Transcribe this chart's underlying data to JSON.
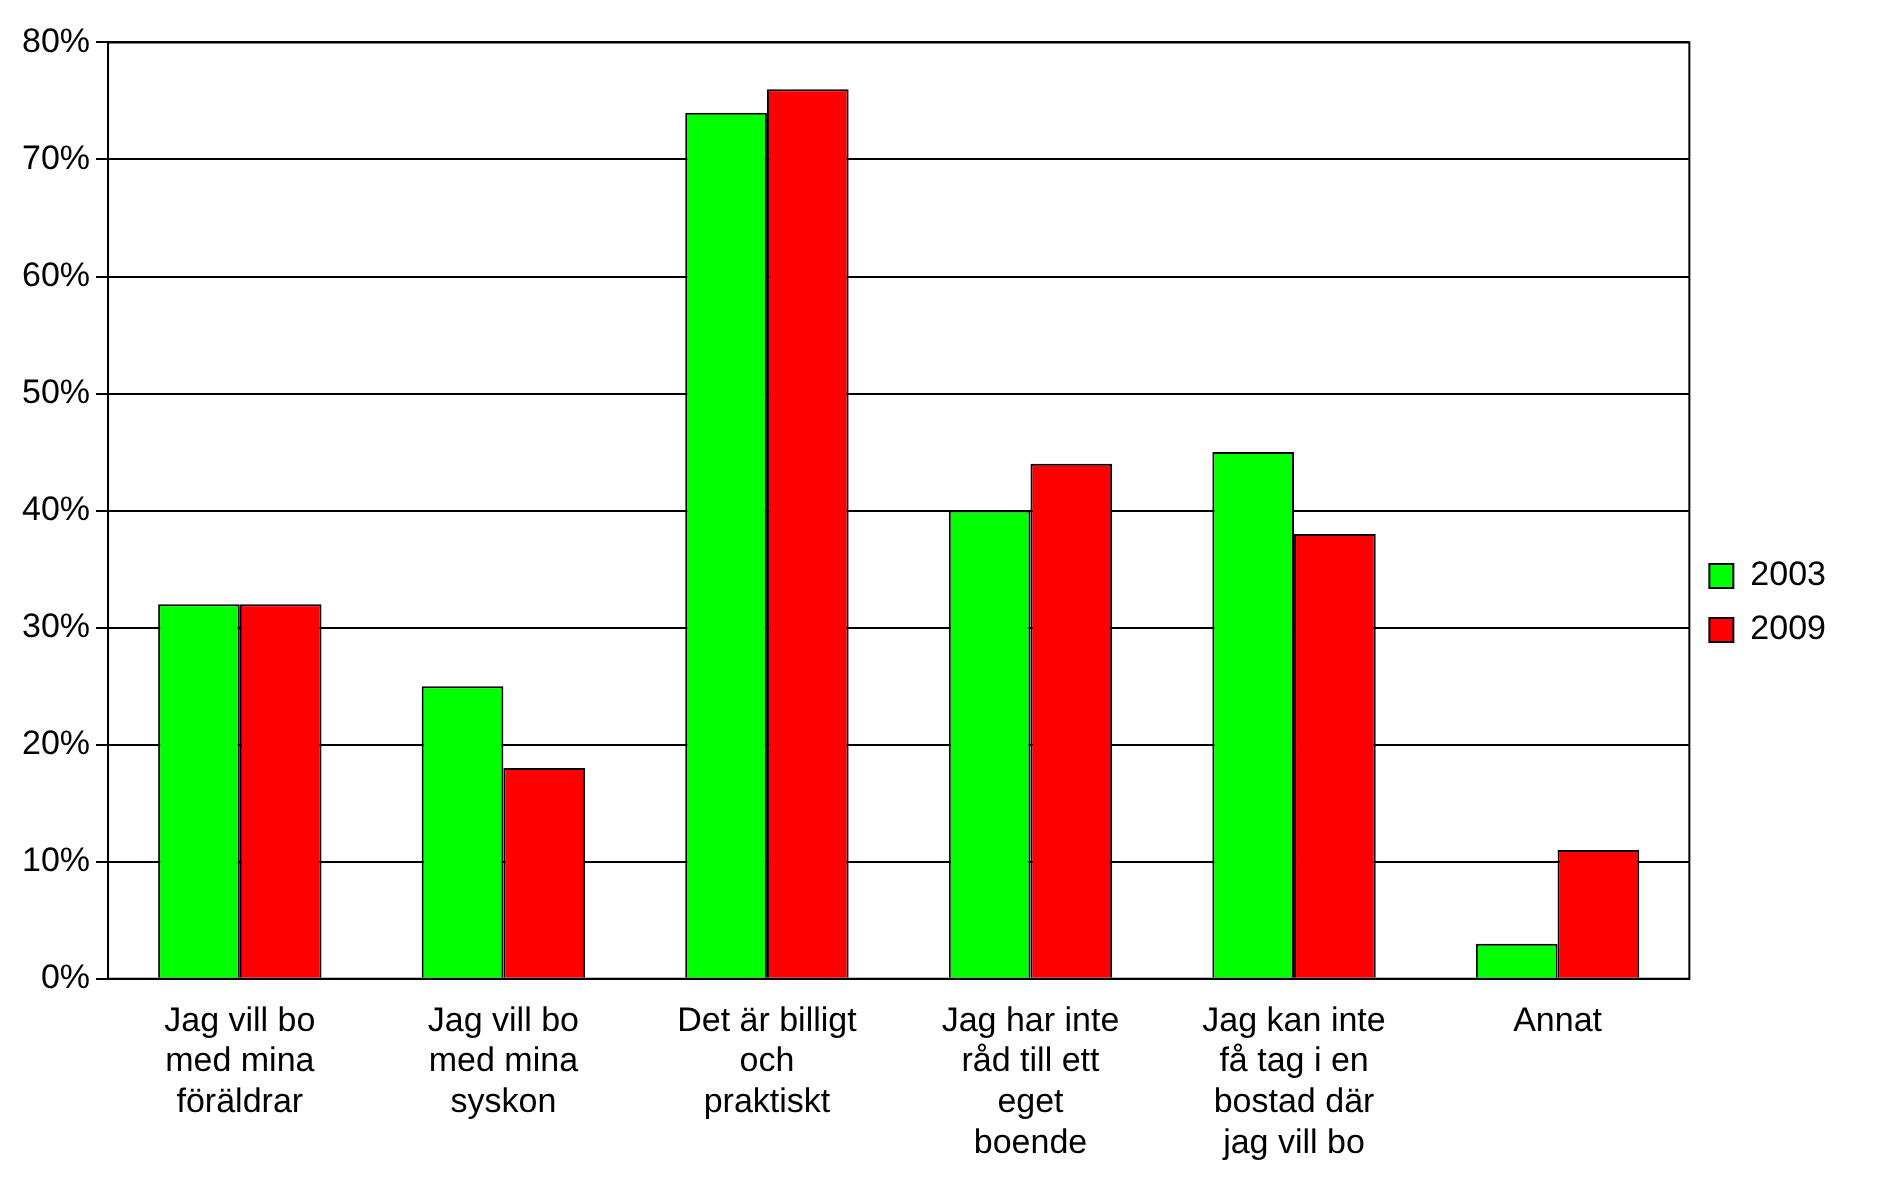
{
  "chart_data": {
    "type": "bar",
    "categories": [
      "Jag vill bo med mina föräldrar",
      "Jag vill bo med mina syskon",
      "Det är billigt och praktiskt",
      "Jag har inte råd till ett eget boende",
      "Jag kan inte få tag i en bostad där jag vill bo",
      "Annat"
    ],
    "series": [
      {
        "name": "2003",
        "color": "#00ff00",
        "values": [
          32,
          25,
          74,
          40,
          45,
          3
        ]
      },
      {
        "name": "2009",
        "color": "#ff0000",
        "values": [
          32,
          18,
          76,
          44,
          38,
          11
        ]
      }
    ],
    "ylim": [
      0,
      80
    ],
    "yticks": [
      {
        "value": 0,
        "label": "0%"
      },
      {
        "value": 10,
        "label": "10%"
      },
      {
        "value": 20,
        "label": "20%"
      },
      {
        "value": 30,
        "label": "30%"
      },
      {
        "value": 40,
        "label": "40%"
      },
      {
        "value": 50,
        "label": "50%"
      },
      {
        "value": 60,
        "label": "60%"
      },
      {
        "value": 70,
        "label": "70%"
      },
      {
        "value": 80,
        "label": "80%"
      }
    ],
    "grid": "y",
    "legend": "right"
  }
}
